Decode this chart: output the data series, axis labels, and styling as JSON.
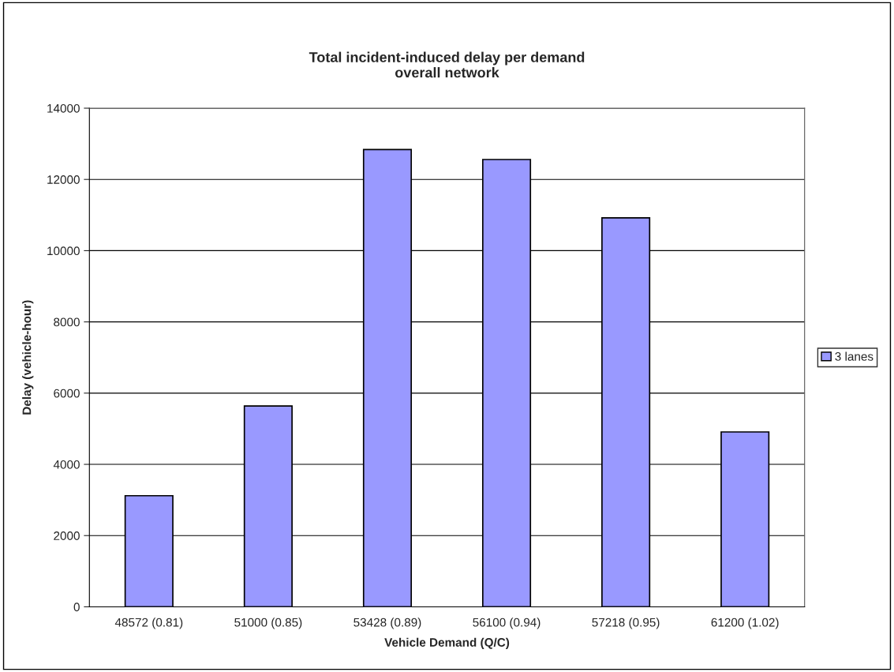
{
  "chart_data": {
    "type": "bar",
    "title": "Total incident-induced delay per demand\noverall network",
    "xlabel": "Vehicle Demand (Q/C)",
    "ylabel": "Delay (vehicle-hour)",
    "categories": [
      "48572 (0.81)",
      "51000 (0.85)",
      "53428 (0.89)",
      "56100 (0.94)",
      "57218 (0.95)",
      "61200 (1.02)"
    ],
    "series": [
      {
        "name": "3 lanes",
        "color": "#9999ff",
        "values": [
          3120,
          5640,
          12840,
          12560,
          10920,
          4910
        ]
      }
    ],
    "ylim": [
      0,
      14000
    ],
    "yticks": [
      0,
      2000,
      4000,
      6000,
      8000,
      10000,
      12000,
      14000
    ],
    "grid": "y",
    "legend": "right"
  }
}
